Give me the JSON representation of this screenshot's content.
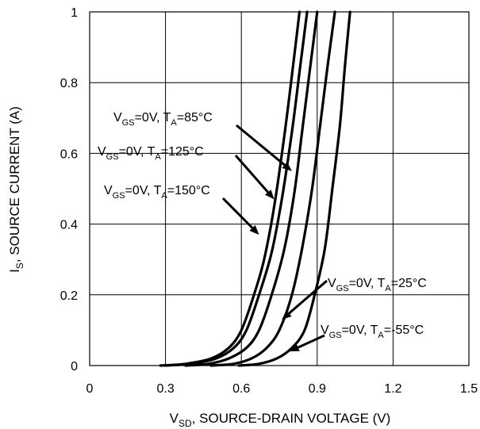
{
  "chart_data": {
    "type": "line",
    "xlabel": {
      "main": "V",
      "sub": "SD",
      "rest": ", SOURCE-DRAIN VOLTAGE (V)"
    },
    "ylabel": {
      "main": "I",
      "sub": "S",
      "rest": ", SOURCE CURRENT (A)"
    },
    "xlim": [
      0,
      1.5
    ],
    "ylim": [
      0,
      1
    ],
    "xticks": [
      "0",
      "0.3",
      "0.6",
      "0.9",
      "1.2",
      "1.5"
    ],
    "yticks": [
      "0",
      "0.2",
      "0.4",
      "0.6",
      "0.8",
      "1"
    ],
    "grid": true,
    "series": [
      {
        "name": "VGS=0V, TA=150°C",
        "label": {
          "p1": "V",
          "s1": "GS",
          "p2": "=0V, T",
          "s2": "A",
          "p3": "=150°C"
        },
        "x": [
          0.28,
          0.38,
          0.48,
          0.55,
          0.6,
          0.65,
          0.69,
          0.73,
          0.77,
          0.8,
          0.83
        ],
        "y": [
          0.0,
          0.005,
          0.02,
          0.05,
          0.1,
          0.2,
          0.3,
          0.45,
          0.65,
          0.82,
          1.0
        ],
        "arrow_target": [
          0.67,
          0.37
        ]
      },
      {
        "name": "VGS=0V, TA=125°C",
        "label": {
          "p1": "V",
          "s1": "GS",
          "p2": "=0V, T",
          "s2": "A",
          "p3": "=125°C"
        },
        "x": [
          0.3,
          0.4,
          0.5,
          0.57,
          0.62,
          0.67,
          0.72,
          0.76,
          0.8,
          0.83,
          0.86
        ],
        "y": [
          0.0,
          0.005,
          0.02,
          0.05,
          0.1,
          0.2,
          0.32,
          0.47,
          0.66,
          0.83,
          1.0
        ],
        "arrow_target": [
          0.73,
          0.47
        ]
      },
      {
        "name": "VGS=0V, TA=85°C",
        "label": {
          "p1": "V",
          "s1": "GS",
          "p2": "=0V, T",
          "s2": "A",
          "p3": "=85°C"
        },
        "x": [
          0.38,
          0.47,
          0.55,
          0.62,
          0.67,
          0.72,
          0.77,
          0.81,
          0.84,
          0.87,
          0.9
        ],
        "y": [
          0.0,
          0.005,
          0.02,
          0.05,
          0.1,
          0.2,
          0.33,
          0.49,
          0.66,
          0.83,
          1.0
        ],
        "arrow_target": [
          0.8,
          0.55
        ]
      },
      {
        "name": "VGS=0V, TA=25°C",
        "label": {
          "p1": "V",
          "s1": "GS",
          "p2": "=0V, T",
          "s2": "A",
          "p3": "=25°C"
        },
        "x": [
          0.48,
          0.57,
          0.64,
          0.7,
          0.75,
          0.8,
          0.84,
          0.88,
          0.91,
          0.94,
          0.97
        ],
        "y": [
          0.0,
          0.005,
          0.02,
          0.05,
          0.1,
          0.2,
          0.33,
          0.5,
          0.67,
          0.84,
          1.0
        ],
        "arrow_target": [
          0.76,
          0.13
        ]
      },
      {
        "name": "VGS=0V, TA=-55°C",
        "label": {
          "p1": "V",
          "s1": "GS",
          "p2": "=0V, T",
          "s2": "A",
          "p3": "=-55°C"
        },
        "x": [
          0.59,
          0.67,
          0.74,
          0.8,
          0.85,
          0.89,
          0.93,
          0.96,
          0.99,
          1.01,
          1.03
        ],
        "y": [
          0.0,
          0.005,
          0.02,
          0.05,
          0.1,
          0.2,
          0.33,
          0.5,
          0.68,
          0.85,
          1.0
        ],
        "arrow_target": [
          0.79,
          0.04
        ]
      }
    ]
  }
}
